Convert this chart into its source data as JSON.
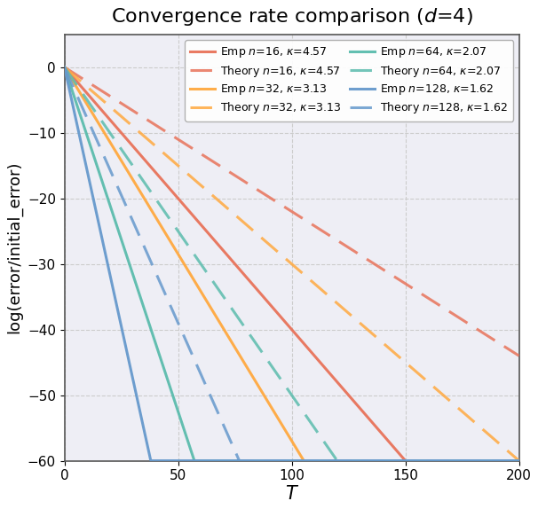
{
  "title": "Convergence rate comparison ($d$=4)",
  "xlabel": "$T$",
  "ylabel": "log(error/initial_error)",
  "xlim": [
    0,
    200
  ],
  "ylim": [
    -60,
    5
  ],
  "yticks": [
    0,
    -10,
    -20,
    -30,
    -40,
    -50,
    -60
  ],
  "xticks": [
    0,
    50,
    100,
    150,
    200
  ],
  "background_color": "#FFFFFF",
  "axes_facecolor": "#EEEEF5",
  "grid_color": "#CCCCCC",
  "legend_fontsize": 9,
  "title_fontsize": 16,
  "label_fontsize": 13,
  "xlabel_fontsize": 15,
  "tick_fontsize": 11,
  "linewidth_solid": 2.2,
  "linewidth_dashed": 2.2,
  "colors": [
    "#E8735A",
    "#FFA940",
    "#5BBCAD",
    "#6699CC"
  ],
  "ns": [
    16,
    32,
    64,
    128
  ],
  "kappas": [
    4.57,
    3.13,
    2.07,
    1.62
  ],
  "emp_slopes": [
    0.4,
    0.57,
    1.05,
    1.58
  ],
  "theory_slopes": [
    0.22,
    0.3,
    0.5,
    0.78
  ]
}
